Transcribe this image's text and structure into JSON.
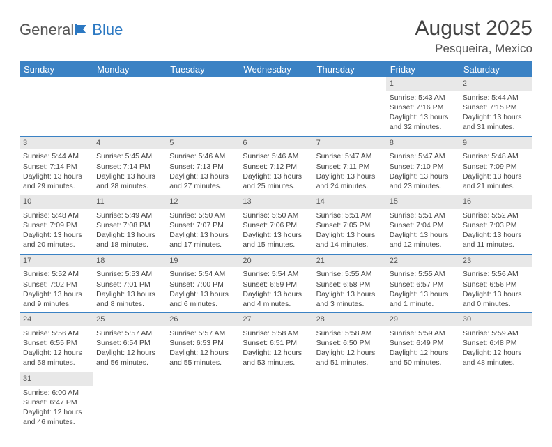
{
  "logo": {
    "textA": "General",
    "textB": "Blue"
  },
  "title": "August 2025",
  "subtitle": "Pesqueira, Mexico",
  "colors": {
    "header_bg": "#3b82c4",
    "header_fg": "#ffffff",
    "daynum_bg": "#e8e8e8",
    "row_border": "#3b82c4",
    "text": "#444444"
  },
  "dayHeaders": [
    "Sunday",
    "Monday",
    "Tuesday",
    "Wednesday",
    "Thursday",
    "Friday",
    "Saturday"
  ],
  "weeks": [
    [
      null,
      null,
      null,
      null,
      null,
      {
        "n": "1",
        "sr": "Sunrise: 5:43 AM",
        "ss": "Sunset: 7:16 PM",
        "d1": "Daylight: 13 hours",
        "d2": "and 32 minutes."
      },
      {
        "n": "2",
        "sr": "Sunrise: 5:44 AM",
        "ss": "Sunset: 7:15 PM",
        "d1": "Daylight: 13 hours",
        "d2": "and 31 minutes."
      }
    ],
    [
      {
        "n": "3",
        "sr": "Sunrise: 5:44 AM",
        "ss": "Sunset: 7:14 PM",
        "d1": "Daylight: 13 hours",
        "d2": "and 29 minutes."
      },
      {
        "n": "4",
        "sr": "Sunrise: 5:45 AM",
        "ss": "Sunset: 7:14 PM",
        "d1": "Daylight: 13 hours",
        "d2": "and 28 minutes."
      },
      {
        "n": "5",
        "sr": "Sunrise: 5:46 AM",
        "ss": "Sunset: 7:13 PM",
        "d1": "Daylight: 13 hours",
        "d2": "and 27 minutes."
      },
      {
        "n": "6",
        "sr": "Sunrise: 5:46 AM",
        "ss": "Sunset: 7:12 PM",
        "d1": "Daylight: 13 hours",
        "d2": "and 25 minutes."
      },
      {
        "n": "7",
        "sr": "Sunrise: 5:47 AM",
        "ss": "Sunset: 7:11 PM",
        "d1": "Daylight: 13 hours",
        "d2": "and 24 minutes."
      },
      {
        "n": "8",
        "sr": "Sunrise: 5:47 AM",
        "ss": "Sunset: 7:10 PM",
        "d1": "Daylight: 13 hours",
        "d2": "and 23 minutes."
      },
      {
        "n": "9",
        "sr": "Sunrise: 5:48 AM",
        "ss": "Sunset: 7:09 PM",
        "d1": "Daylight: 13 hours",
        "d2": "and 21 minutes."
      }
    ],
    [
      {
        "n": "10",
        "sr": "Sunrise: 5:48 AM",
        "ss": "Sunset: 7:09 PM",
        "d1": "Daylight: 13 hours",
        "d2": "and 20 minutes."
      },
      {
        "n": "11",
        "sr": "Sunrise: 5:49 AM",
        "ss": "Sunset: 7:08 PM",
        "d1": "Daylight: 13 hours",
        "d2": "and 18 minutes."
      },
      {
        "n": "12",
        "sr": "Sunrise: 5:50 AM",
        "ss": "Sunset: 7:07 PM",
        "d1": "Daylight: 13 hours",
        "d2": "and 17 minutes."
      },
      {
        "n": "13",
        "sr": "Sunrise: 5:50 AM",
        "ss": "Sunset: 7:06 PM",
        "d1": "Daylight: 13 hours",
        "d2": "and 15 minutes."
      },
      {
        "n": "14",
        "sr": "Sunrise: 5:51 AM",
        "ss": "Sunset: 7:05 PM",
        "d1": "Daylight: 13 hours",
        "d2": "and 14 minutes."
      },
      {
        "n": "15",
        "sr": "Sunrise: 5:51 AM",
        "ss": "Sunset: 7:04 PM",
        "d1": "Daylight: 13 hours",
        "d2": "and 12 minutes."
      },
      {
        "n": "16",
        "sr": "Sunrise: 5:52 AM",
        "ss": "Sunset: 7:03 PM",
        "d1": "Daylight: 13 hours",
        "d2": "and 11 minutes."
      }
    ],
    [
      {
        "n": "17",
        "sr": "Sunrise: 5:52 AM",
        "ss": "Sunset: 7:02 PM",
        "d1": "Daylight: 13 hours",
        "d2": "and 9 minutes."
      },
      {
        "n": "18",
        "sr": "Sunrise: 5:53 AM",
        "ss": "Sunset: 7:01 PM",
        "d1": "Daylight: 13 hours",
        "d2": "and 8 minutes."
      },
      {
        "n": "19",
        "sr": "Sunrise: 5:54 AM",
        "ss": "Sunset: 7:00 PM",
        "d1": "Daylight: 13 hours",
        "d2": "and 6 minutes."
      },
      {
        "n": "20",
        "sr": "Sunrise: 5:54 AM",
        "ss": "Sunset: 6:59 PM",
        "d1": "Daylight: 13 hours",
        "d2": "and 4 minutes."
      },
      {
        "n": "21",
        "sr": "Sunrise: 5:55 AM",
        "ss": "Sunset: 6:58 PM",
        "d1": "Daylight: 13 hours",
        "d2": "and 3 minutes."
      },
      {
        "n": "22",
        "sr": "Sunrise: 5:55 AM",
        "ss": "Sunset: 6:57 PM",
        "d1": "Daylight: 13 hours",
        "d2": "and 1 minute."
      },
      {
        "n": "23",
        "sr": "Sunrise: 5:56 AM",
        "ss": "Sunset: 6:56 PM",
        "d1": "Daylight: 13 hours",
        "d2": "and 0 minutes."
      }
    ],
    [
      {
        "n": "24",
        "sr": "Sunrise: 5:56 AM",
        "ss": "Sunset: 6:55 PM",
        "d1": "Daylight: 12 hours",
        "d2": "and 58 minutes."
      },
      {
        "n": "25",
        "sr": "Sunrise: 5:57 AM",
        "ss": "Sunset: 6:54 PM",
        "d1": "Daylight: 12 hours",
        "d2": "and 56 minutes."
      },
      {
        "n": "26",
        "sr": "Sunrise: 5:57 AM",
        "ss": "Sunset: 6:53 PM",
        "d1": "Daylight: 12 hours",
        "d2": "and 55 minutes."
      },
      {
        "n": "27",
        "sr": "Sunrise: 5:58 AM",
        "ss": "Sunset: 6:51 PM",
        "d1": "Daylight: 12 hours",
        "d2": "and 53 minutes."
      },
      {
        "n": "28",
        "sr": "Sunrise: 5:58 AM",
        "ss": "Sunset: 6:50 PM",
        "d1": "Daylight: 12 hours",
        "d2": "and 51 minutes."
      },
      {
        "n": "29",
        "sr": "Sunrise: 5:59 AM",
        "ss": "Sunset: 6:49 PM",
        "d1": "Daylight: 12 hours",
        "d2": "and 50 minutes."
      },
      {
        "n": "30",
        "sr": "Sunrise: 5:59 AM",
        "ss": "Sunset: 6:48 PM",
        "d1": "Daylight: 12 hours",
        "d2": "and 48 minutes."
      }
    ],
    [
      {
        "n": "31",
        "sr": "Sunrise: 6:00 AM",
        "ss": "Sunset: 6:47 PM",
        "d1": "Daylight: 12 hours",
        "d2": "and 46 minutes."
      },
      null,
      null,
      null,
      null,
      null,
      null
    ]
  ]
}
